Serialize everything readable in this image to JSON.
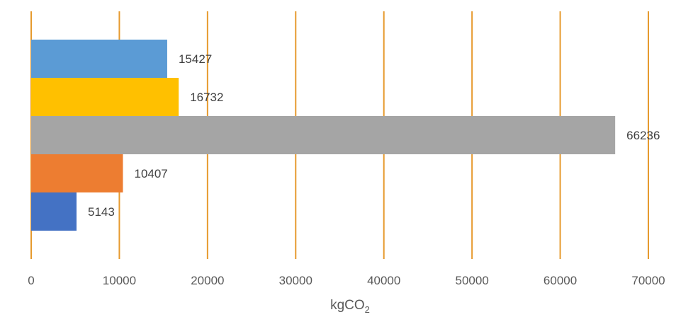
{
  "chart_data": {
    "type": "bar",
    "orientation": "horizontal",
    "xlim": [
      0,
      70000
    ],
    "x_ticks": [
      0,
      10000,
      20000,
      30000,
      40000,
      50000,
      60000,
      70000
    ],
    "x_tick_labels": [
      "0",
      "10000",
      "20000",
      "30000",
      "40000",
      "50000",
      "60000",
      "70000"
    ],
    "xlabel_main": "kgCO",
    "xlabel_sub": "2",
    "grid": "vertical",
    "gridline_color": "#E69A2E",
    "bars": [
      {
        "value": 15427,
        "label": "15427",
        "color": "#5B9BD5"
      },
      {
        "value": 16732,
        "label": "16732",
        "color": "#FFC000"
      },
      {
        "value": 66236,
        "label": "66236",
        "color": "#A5A5A5"
      },
      {
        "value": 10407,
        "label": "10407",
        "color": "#ED7D31"
      },
      {
        "value": 5143,
        "label": "5143",
        "color": "#4472C4"
      }
    ]
  }
}
